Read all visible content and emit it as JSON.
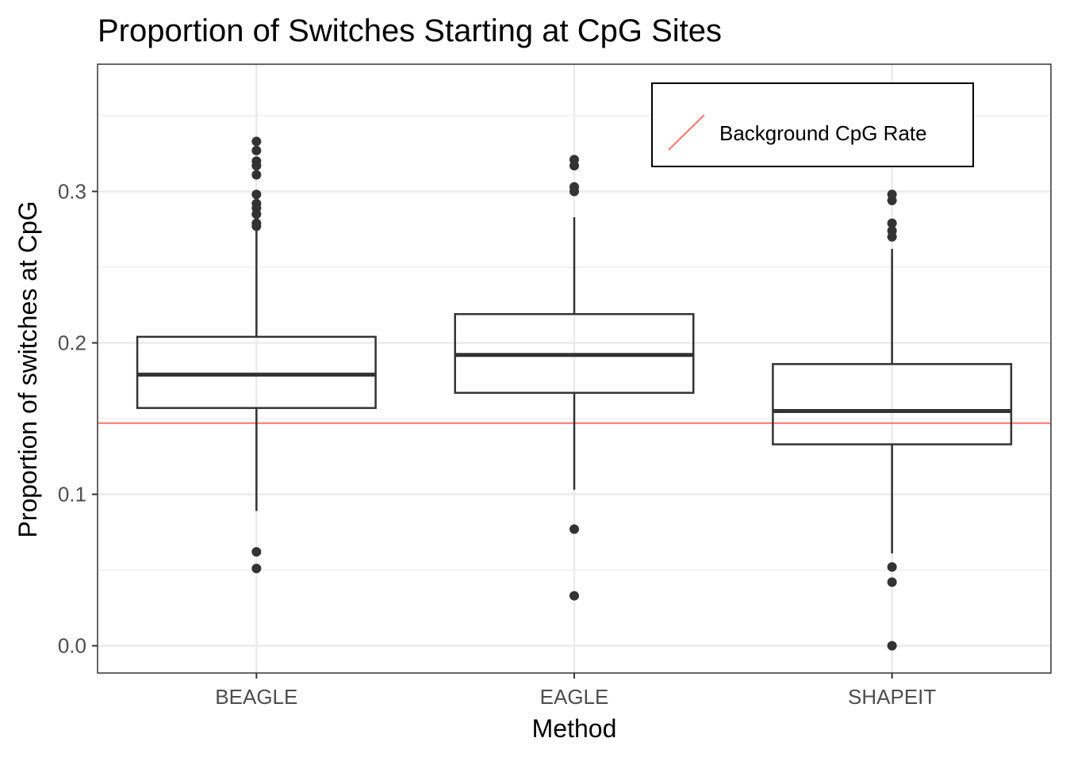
{
  "chart_data": {
    "type": "boxplot",
    "title": "Proportion of Switches Starting at CpG Sites",
    "xlabel": "Method",
    "ylabel": "Proportion of switches at CpG",
    "categories": [
      "BEAGLE",
      "EAGLE",
      "SHAPEIT"
    ],
    "ylim": [
      -0.018,
      0.384
    ],
    "yticks": [
      0.0,
      0.1,
      0.2,
      0.3
    ],
    "ytick_labels": [
      "0.0",
      "0.1",
      "0.2",
      "0.3"
    ],
    "grid": true,
    "boxes": [
      {
        "category": "BEAGLE",
        "whisker_low": 0.089,
        "q1": 0.157,
        "median": 0.179,
        "q3": 0.204,
        "whisker_high": 0.276,
        "outliers": [
          0.333,
          0.327,
          0.32,
          0.317,
          0.311,
          0.298,
          0.292,
          0.289,
          0.285,
          0.279,
          0.277,
          0.062,
          0.051
        ]
      },
      {
        "category": "EAGLE",
        "whisker_low": 0.103,
        "q1": 0.167,
        "median": 0.192,
        "q3": 0.219,
        "whisker_high": 0.283,
        "outliers": [
          0.321,
          0.317,
          0.303,
          0.3,
          0.077,
          0.033
        ]
      },
      {
        "category": "SHAPEIT",
        "whisker_low": 0.061,
        "q1": 0.133,
        "median": 0.155,
        "q3": 0.186,
        "whisker_high": 0.262,
        "outliers": [
          0.298,
          0.294,
          0.279,
          0.274,
          0.27,
          0.052,
          0.042,
          0.0
        ]
      }
    ],
    "reference_line": {
      "label": "Background CpG Rate",
      "value": 0.147,
      "color": "#f8766d"
    },
    "legend": {
      "position": "top-right",
      "entries": [
        "Background CpG Rate"
      ]
    },
    "colors": {
      "box_stroke": "#333333",
      "grid_major": "#ebebeb",
      "grid_minor": "#ebebeb",
      "panel_border": "#333333"
    }
  }
}
